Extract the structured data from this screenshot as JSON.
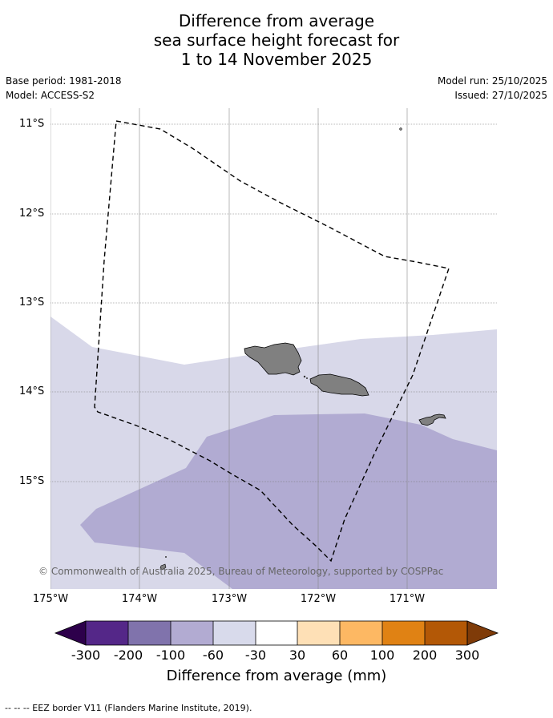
{
  "title": {
    "line1": "Difference from average",
    "line2": "sea surface height forecast for",
    "line3": "1 to 14 November 2025"
  },
  "meta": {
    "base_period": "Base period: 1981-2018",
    "model": "Model: ACCESS-S2",
    "model_run": "Model run: 25/10/2025",
    "issued": "Issued: 27/10/2025"
  },
  "map": {
    "lat_labels": [
      "11°S",
      "12°S",
      "13°S",
      "14°S",
      "15°S"
    ],
    "lon_labels": [
      "175°W",
      "174°W",
      "173°W",
      "172°W",
      "171°W"
    ],
    "copyright": "© Commonwealth of Australia 2025, Bureau of Meteorology, supported by COSPPac",
    "land_color": "#808080",
    "anomaly_band_colors": {
      "-30 to -60": "#d8d8e9",
      "-60 to -100": "#b1abd2"
    }
  },
  "colorbar": {
    "labels": [
      "-300",
      "-200",
      "-100",
      "-60",
      "-30",
      "30",
      "60",
      "100",
      "200",
      "300"
    ],
    "colors": [
      "#2d004b",
      "#542788",
      "#8073ac",
      "#b2abd2",
      "#d8daeb",
      "#ffffff",
      "#fee0b6",
      "#fdb863",
      "#e08214",
      "#b35806",
      "#7f3b08"
    ],
    "title": "Difference from average (mm)"
  },
  "footer": {
    "legend_line": "--  --  -- EEZ border V11 (Flanders Marine Institute, 2019)."
  }
}
